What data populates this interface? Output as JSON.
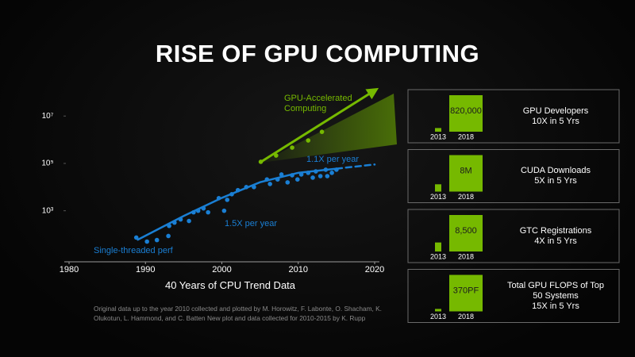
{
  "title": "RISE OF GPU COMPUTING",
  "footnote": "Original data up to the year 2010 collected and plotted by M. Horowitz, F. Labonte, O. Shacham, K. Olukotun, L. Hammond, and C. Batten New plot and data collected for 2010-2015 by K. Rupp",
  "chart_data": [
    {
      "type": "scatter",
      "title": "40 Years of CPU Trend Data",
      "log_y": true,
      "xlim": [
        1980,
        2020
      ],
      "xticks": [
        1980,
        1990,
        2000,
        2010,
        2020
      ],
      "ylim": [
        7,
        130000000
      ],
      "yticks": [
        {
          "value": 1000,
          "label": "10³"
        },
        {
          "value": 100000,
          "label": "10⁵"
        },
        {
          "value": 10000000,
          "label": "10⁷"
        }
      ],
      "annotations": [
        "1.5X per year",
        "1.1X per year"
      ],
      "series": [
        {
          "name": "Single-threaded perf",
          "color": "#1a7fd4",
          "style": "markers",
          "x": [
            1988.8,
            1990.2,
            1991.5,
            1993.0,
            1993.1,
            1993.8,
            1994.6,
            1995.7,
            1996.3,
            1996.9,
            1997.6,
            1998.2,
            1999.6,
            2000.3,
            2000.7,
            2001.3,
            2002.1,
            2003.2,
            2004.2,
            2005.9,
            2006.3,
            2007.3,
            2007.8,
            2008.6,
            2009.2,
            2009.9,
            2010.4,
            2011.3,
            2011.9,
            2012.3,
            2012.9,
            2013.6,
            2013.8,
            2014.4,
            2015.0
          ],
          "values": [
            74,
            50,
            58,
            86,
            230,
            316,
            430,
            370,
            860,
            1000,
            1260,
            860,
            3400,
            1000,
            2900,
            5000,
            7400,
            10000,
            10000,
            21000,
            13500,
            21000,
            34000,
            15800,
            31600,
            21000,
            34000,
            40000,
            25000,
            46000,
            29000,
            54000,
            29000,
            40000,
            54000
          ]
        },
        {
          "name": "GPU-Accelerated Computing",
          "color": "#76b900",
          "style": "markers",
          "x": [
            2005.1,
            2007.1,
            2009.2,
            2011.3,
            2013.1
          ],
          "values": [
            117000,
            215000,
            464000,
            930000,
            2150000
          ]
        },
        {
          "color": "#1a7fd4",
          "style": "line",
          "x": [
            1989,
            1995,
            2000,
            2005,
            2010,
            2015
          ],
          "values": [
            60,
            600,
            3500,
            16000,
            40000,
            60000
          ]
        },
        {
          "color": "#1a7fd4",
          "style": "dashed",
          "x": [
            2015,
            2020
          ],
          "values": [
            60000,
            90000
          ]
        },
        {
          "color": "#76b900",
          "style": "arrow",
          "x": [
            2005,
            2020
          ],
          "values": [
            110000,
            120000000
          ]
        }
      ]
    },
    {
      "type": "bar",
      "title": "GPU Developers",
      "subtitle": "10X in 5 Yrs",
      "color": "#76b900",
      "categories": [
        "2013",
        "2018"
      ],
      "values": [
        82000,
        820000
      ],
      "value_labels": [
        null,
        "820,000"
      ]
    },
    {
      "type": "bar",
      "title": "CUDA Downloads",
      "subtitle": "5X in 5 Yrs",
      "color": "#76b900",
      "categories": [
        "2013",
        "2018"
      ],
      "values": [
        1600000,
        8000000
      ],
      "value_labels": [
        null,
        "8M"
      ]
    },
    {
      "type": "bar",
      "title": "GTC Registrations",
      "subtitle": "4X in 5 Yrs",
      "color": "#76b900",
      "categories": [
        "2013",
        "2018"
      ],
      "values": [
        2100,
        8500
      ],
      "value_labels": [
        null,
        "8,500"
      ]
    },
    {
      "type": "bar",
      "title": "Total GPU FLOPS of Top 50 Systems",
      "subtitle": "15X in 5 Yrs",
      "color": "#76b900",
      "categories": [
        "2013",
        "2018"
      ],
      "values": [
        25,
        370
      ],
      "value_labels": [
        null,
        "370PF"
      ]
    }
  ]
}
